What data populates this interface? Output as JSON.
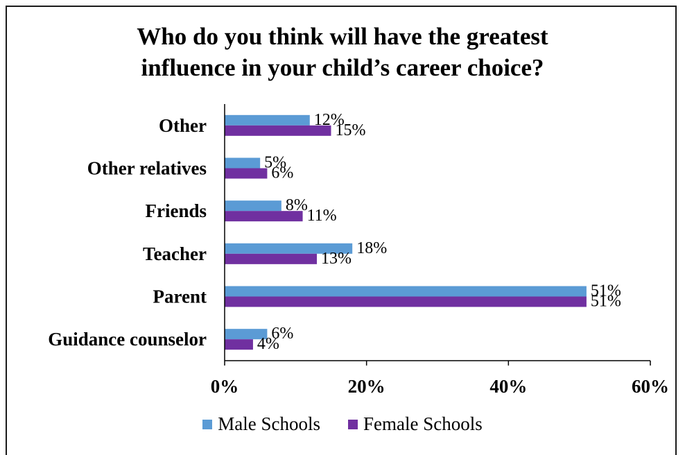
{
  "chart_data": {
    "type": "bar",
    "orientation": "horizontal",
    "title": [
      "Who do you think will have the greatest",
      "influence in your child’s career choice?"
    ],
    "categories": [
      "Other",
      "Other relatives",
      "Friends",
      "Teacher",
      "Parent",
      "Guidance counselor"
    ],
    "series": [
      {
        "name": "Male Schools",
        "color": "#5b9bd5",
        "values": [
          12,
          5,
          8,
          18,
          51,
          6
        ],
        "labels": [
          "12%",
          "5%",
          "8%",
          "18%",
          "51%",
          "6%"
        ]
      },
      {
        "name": "Female Schools",
        "color": "#7030a0",
        "values": [
          15,
          6,
          11,
          13,
          51,
          4
        ],
        "labels": [
          "15%",
          "6%",
          "11%",
          "13%",
          "51%",
          "4%"
        ]
      }
    ],
    "xlim": [
      0,
      60
    ],
    "xticks": [
      0,
      20,
      40,
      60
    ],
    "xtick_labels": [
      "0%",
      "20%",
      "40%",
      "60%"
    ],
    "grid": false,
    "legend_position": "bottom"
  }
}
